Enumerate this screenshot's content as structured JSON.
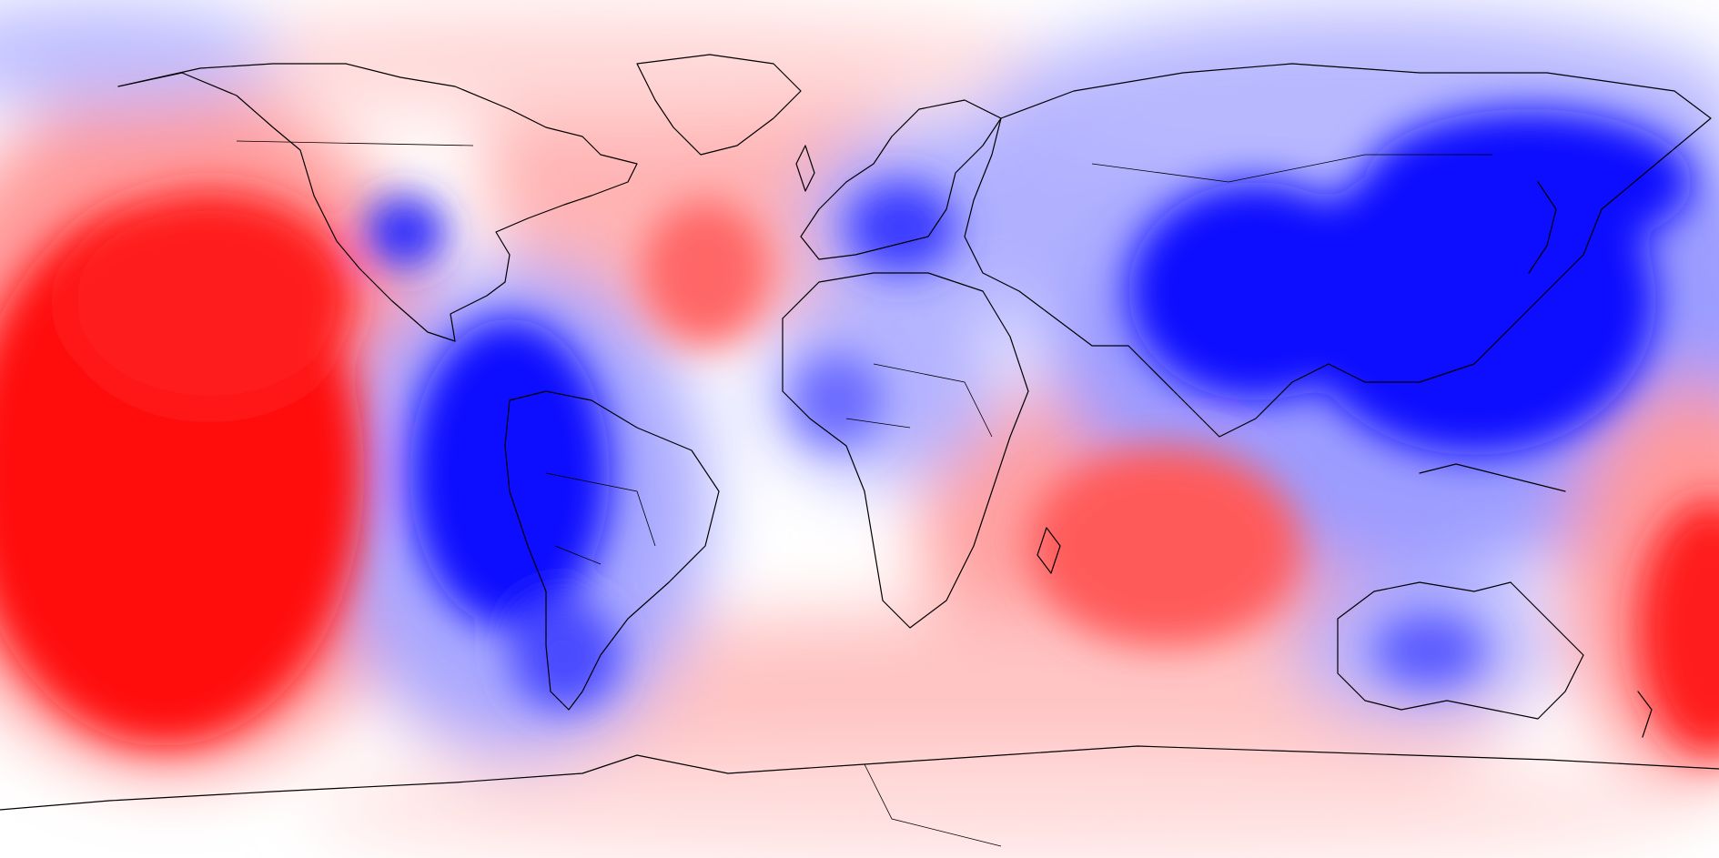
{
  "map": {
    "projection": "equirectangular",
    "field_colors": {
      "background": "#ffffff",
      "strong_positive": "#ff1010",
      "positive": "#ff7a7a",
      "weak_positive": "#ffd6d6",
      "neutral": "#ffffff",
      "weak_negative": "#d6d6ff",
      "negative": "#7a7aff",
      "strong_negative": "#0a0aff",
      "coastline": "#000000"
    }
  }
}
